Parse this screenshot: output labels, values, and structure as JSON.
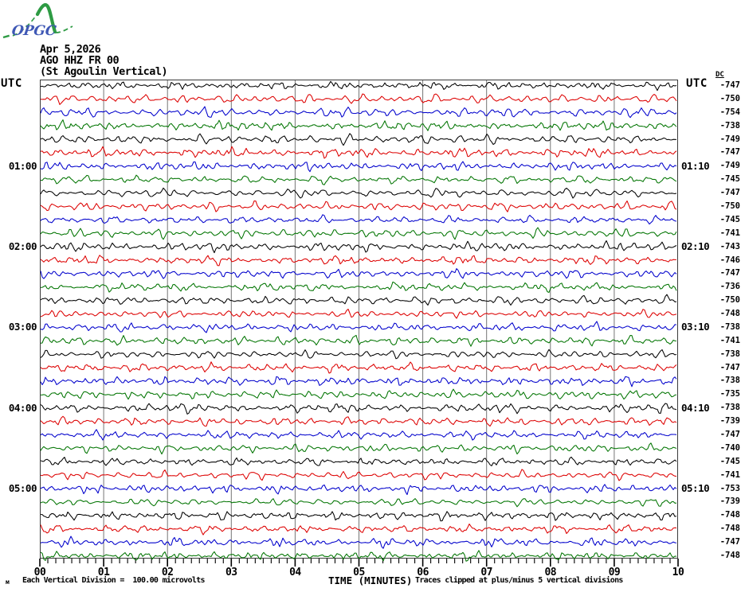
{
  "logo": {
    "text": "OPGC",
    "green": "#2e9b44",
    "blue": "#3f58b5"
  },
  "header": {
    "date": "Apr 5,2026",
    "station": "AGO HHZ FR 00",
    "station_name": "(St Agoulin Vertical)"
  },
  "axis": {
    "utc_left": "UTC",
    "utc_right": "UTC",
    "dc_label": "DC",
    "x_title": "TIME (MINUTES)",
    "x_ticks": [
      "00",
      "01",
      "02",
      "03",
      "04",
      "05",
      "06",
      "07",
      "08",
      "09",
      "10"
    ]
  },
  "footer": {
    "micro_mark": "м",
    "scale_note": "Each Vertical Division =  100.00 microvolts",
    "clip_note": "Traces clipped at plus/minus 5 vertical divisions"
  },
  "colors": {
    "black": "#000000",
    "red": "#dd0000",
    "blue": "#0000cc",
    "green": "#007400",
    "grid": "#757575",
    "border": "#3a3a3a"
  },
  "chart_data": {
    "type": "line",
    "subtype": "helicorder_seismogram",
    "title": "AGO HHZ FR 00 (St Agoulin Vertical) Apr 5,2026",
    "xlabel": "TIME (MINUTES)",
    "x_range_minutes": [
      0,
      10
    ],
    "minutes_per_row": 10,
    "grid": "vertical gridline each minute",
    "legend_position": "none",
    "amplitude_scale": "Each Vertical Division = 100.00 microvolts",
    "clipping": "Traces clipped at plus/minus 5 vertical divisions",
    "color_cycle": [
      "black",
      "red",
      "blue",
      "green"
    ],
    "rows": [
      {
        "utc_start": "00:00",
        "utc_end": "00:10",
        "dc": -747,
        "color": "black"
      },
      {
        "utc_start": "00:10",
        "utc_end": "00:20",
        "dc": -750,
        "color": "red"
      },
      {
        "utc_start": "00:20",
        "utc_end": "00:30",
        "dc": -754,
        "color": "blue"
      },
      {
        "utc_start": "00:30",
        "utc_end": "00:40",
        "dc": -738,
        "color": "green"
      },
      {
        "utc_start": "00:40",
        "utc_end": "00:50",
        "dc": -749,
        "color": "black"
      },
      {
        "utc_start": "00:50",
        "utc_end": "01:00",
        "dc": -747,
        "color": "red"
      },
      {
        "utc_start": "01:00",
        "utc_end": "01:10",
        "dc": -749,
        "color": "blue"
      },
      {
        "utc_start": "01:10",
        "utc_end": "01:20",
        "dc": -745,
        "color": "green"
      },
      {
        "utc_start": "01:20",
        "utc_end": "01:30",
        "dc": -747,
        "color": "black"
      },
      {
        "utc_start": "01:30",
        "utc_end": "01:40",
        "dc": -750,
        "color": "red"
      },
      {
        "utc_start": "01:40",
        "utc_end": "01:50",
        "dc": -745,
        "color": "blue"
      },
      {
        "utc_start": "01:50",
        "utc_end": "02:00",
        "dc": -741,
        "color": "green"
      },
      {
        "utc_start": "02:00",
        "utc_end": "02:10",
        "dc": -743,
        "color": "black"
      },
      {
        "utc_start": "02:10",
        "utc_end": "02:20",
        "dc": -746,
        "color": "red"
      },
      {
        "utc_start": "02:20",
        "utc_end": "02:30",
        "dc": -747,
        "color": "blue"
      },
      {
        "utc_start": "02:30",
        "utc_end": "02:40",
        "dc": -736,
        "color": "green"
      },
      {
        "utc_start": "02:40",
        "utc_end": "02:50",
        "dc": -750,
        "color": "black"
      },
      {
        "utc_start": "02:50",
        "utc_end": "03:00",
        "dc": -748,
        "color": "red"
      },
      {
        "utc_start": "03:00",
        "utc_end": "03:10",
        "dc": -738,
        "color": "blue"
      },
      {
        "utc_start": "03:10",
        "utc_end": "03:20",
        "dc": -741,
        "color": "green"
      },
      {
        "utc_start": "03:20",
        "utc_end": "03:30",
        "dc": -738,
        "color": "black"
      },
      {
        "utc_start": "03:30",
        "utc_end": "03:40",
        "dc": -747,
        "color": "red"
      },
      {
        "utc_start": "03:40",
        "utc_end": "03:50",
        "dc": -738,
        "color": "blue"
      },
      {
        "utc_start": "03:50",
        "utc_end": "04:00",
        "dc": -735,
        "color": "green"
      },
      {
        "utc_start": "04:00",
        "utc_end": "04:10",
        "dc": -738,
        "color": "black"
      },
      {
        "utc_start": "04:10",
        "utc_end": "04:20",
        "dc": -739,
        "color": "red"
      },
      {
        "utc_start": "04:20",
        "utc_end": "04:30",
        "dc": -747,
        "color": "blue"
      },
      {
        "utc_start": "04:30",
        "utc_end": "04:40",
        "dc": -740,
        "color": "green"
      },
      {
        "utc_start": "04:40",
        "utc_end": "04:50",
        "dc": -745,
        "color": "black"
      },
      {
        "utc_start": "04:50",
        "utc_end": "05:00",
        "dc": -741,
        "color": "red"
      },
      {
        "utc_start": "05:00",
        "utc_end": "05:10",
        "dc": -753,
        "color": "blue"
      },
      {
        "utc_start": "05:10",
        "utc_end": "05:20",
        "dc": -739,
        "color": "green"
      },
      {
        "utc_start": "05:20",
        "utc_end": "05:30",
        "dc": -748,
        "color": "black"
      },
      {
        "utc_start": "05:30",
        "utc_end": "05:40",
        "dc": -748,
        "color": "red"
      },
      {
        "utc_start": "05:40",
        "utc_end": "05:50",
        "dc": -747,
        "color": "blue"
      },
      {
        "utc_start": "05:50",
        "utc_end": "06:00",
        "dc": -748,
        "color": "green"
      }
    ],
    "hour_labels_left": [
      {
        "row": 6,
        "label": "01:00"
      },
      {
        "row": 12,
        "label": "02:00"
      },
      {
        "row": 18,
        "label": "03:00"
      },
      {
        "row": 24,
        "label": "04:00"
      },
      {
        "row": 30,
        "label": "05:00"
      }
    ],
    "hour_labels_right": [
      {
        "row": 6,
        "label": "01:10"
      },
      {
        "row": 12,
        "label": "02:10"
      },
      {
        "row": 18,
        "label": "03:10"
      },
      {
        "row": 24,
        "label": "04:10"
      },
      {
        "row": 30,
        "label": "05:10"
      }
    ]
  }
}
